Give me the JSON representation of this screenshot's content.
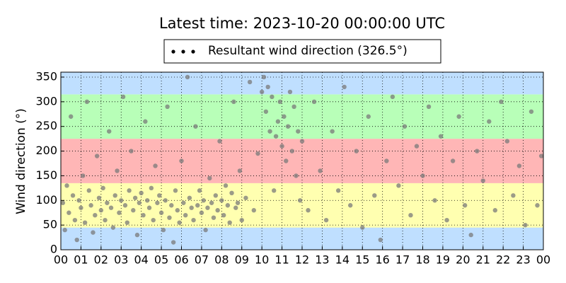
{
  "chart_data": {
    "type": "scatter",
    "title": "Latest time: 2023-10-20 00:00:00 UTC",
    "ylabel": "Wind direction (°)",
    "xlim": [
      0,
      24
    ],
    "ylim": [
      0,
      360
    ],
    "xticks": [
      {
        "value": 0,
        "label": "00"
      },
      {
        "value": 1,
        "label": "01"
      },
      {
        "value": 2,
        "label": "02"
      },
      {
        "value": 3,
        "label": "03"
      },
      {
        "value": 4,
        "label": "04"
      },
      {
        "value": 5,
        "label": "05"
      },
      {
        "value": 6,
        "label": "06"
      },
      {
        "value": 7,
        "label": "07"
      },
      {
        "value": 8,
        "label": "08"
      },
      {
        "value": 9,
        "label": "09"
      },
      {
        "value": 10,
        "label": "10"
      },
      {
        "value": 11,
        "label": "11"
      },
      {
        "value": 12,
        "label": "12"
      },
      {
        "value": 13,
        "label": "13"
      },
      {
        "value": 14,
        "label": "14"
      },
      {
        "value": 15,
        "label": "15"
      },
      {
        "value": 16,
        "label": "16"
      },
      {
        "value": 17,
        "label": "17"
      },
      {
        "value": 18,
        "label": "18"
      },
      {
        "value": 19,
        "label": "19"
      },
      {
        "value": 20,
        "label": "20"
      },
      {
        "value": 21,
        "label": "21"
      },
      {
        "value": 22,
        "label": "22"
      },
      {
        "value": 23,
        "label": "23"
      },
      {
        "value": 24,
        "label": "00"
      }
    ],
    "yticks": [
      0,
      50,
      100,
      150,
      200,
      250,
      300,
      350
    ],
    "grid": true,
    "legend": "top",
    "bands": [
      {
        "from": 0,
        "to": 45,
        "color": "#bfdfff"
      },
      {
        "from": 45,
        "to": 135,
        "color": "#ffffb0"
      },
      {
        "from": 135,
        "to": 225,
        "color": "#ffb6b6"
      },
      {
        "from": 225,
        "to": 315,
        "color": "#b8ffb8"
      },
      {
        "from": 315,
        "to": 360,
        "color": "#bfdfff"
      }
    ],
    "x": [
      0.1,
      0.2,
      0.3,
      0.4,
      0.5,
      0.6,
      0.7,
      0.8,
      0.9,
      1.0,
      1.1,
      1.2,
      1.3,
      1.4,
      1.5,
      1.6,
      1.7,
      1.8,
      1.9,
      2.0,
      2.1,
      2.2,
      2.3,
      2.4,
      2.5,
      2.6,
      2.7,
      2.8,
      2.9,
      3.0,
      3.1,
      3.2,
      3.3,
      3.4,
      3.5,
      3.6,
      3.7,
      3.8,
      3.9,
      4.0,
      4.1,
      4.2,
      4.3,
      4.4,
      4.5,
      4.6,
      4.7,
      4.8,
      4.9,
      5.0,
      5.1,
      5.2,
      5.3,
      5.4,
      5.5,
      5.6,
      5.7,
      5.8,
      5.9,
      6.0,
      6.1,
      6.2,
      6.3,
      6.4,
      6.5,
      6.6,
      6.7,
      6.8,
      6.9,
      7.0,
      7.1,
      7.2,
      7.3,
      7.4,
      7.5,
      7.6,
      7.7,
      7.8,
      7.9,
      8.0,
      8.1,
      8.2,
      8.3,
      8.4,
      8.5,
      8.6,
      8.7,
      8.8,
      8.9,
      9.0,
      9.2,
      9.4,
      9.6,
      9.8,
      10.0,
      10.1,
      10.2,
      10.3,
      10.4,
      10.5,
      10.6,
      10.7,
      10.8,
      10.9,
      11.0,
      11.1,
      11.2,
      11.3,
      11.4,
      11.5,
      11.6,
      11.7,
      11.8,
      11.9,
      12.0,
      12.3,
      12.6,
      12.9,
      13.2,
      13.5,
      13.8,
      14.1,
      14.4,
      14.7,
      15.0,
      15.3,
      15.6,
      15.9,
      16.2,
      16.5,
      16.8,
      17.1,
      17.4,
      17.7,
      18.0,
      18.3,
      18.6,
      18.9,
      19.2,
      19.5,
      19.8,
      20.1,
      20.4,
      20.7,
      21.0,
      21.3,
      21.6,
      21.9,
      22.2,
      22.5,
      22.8,
      23.1,
      23.4,
      23.7,
      23.9
    ],
    "series": [
      {
        "name": "Resultant wind direction (326.5°)",
        "color": "#7a7a7a",
        "values": [
          95,
          40,
          130,
          75,
          270,
          110,
          60,
          20,
          100,
          85,
          150,
          55,
          300,
          120,
          90,
          35,
          70,
          190,
          105,
          80,
          125,
          60,
          95,
          240,
          85,
          45,
          110,
          160,
          75,
          100,
          310,
          90,
          55,
          120,
          200,
          80,
          105,
          30,
          95,
          115,
          70,
          260,
          100,
          85,
          125,
          60,
          170,
          95,
          110,
          75,
          40,
          100,
          290,
          65,
          90,
          15,
          120,
          80,
          55,
          180,
          95,
          70,
          350,
          105,
          85,
          60,
          250,
          90,
          120,
          75,
          100,
          40,
          85,
          145,
          95,
          65,
          110,
          80,
          220,
          100,
          70,
          130,
          90,
          55,
          115,
          300,
          85,
          95,
          160,
          60,
          105,
          340,
          80,
          195,
          320,
          350,
          280,
          330,
          240,
          310,
          120,
          230,
          260,
          300,
          210,
          270,
          180,
          250,
          320,
          200,
          290,
          150,
          240,
          100,
          220,
          80,
          300,
          160,
          60,
          240,
          120,
          330,
          90,
          200,
          45,
          270,
          110,
          20,
          180,
          310,
          130,
          250,
          70,
          210,
          150,
          290,
          100,
          230,
          60,
          180,
          270,
          90,
          30,
          200,
          140,
          260,
          80,
          300,
          220,
          110,
          170,
          50,
          280,
          90,
          190
        ]
      }
    ]
  }
}
